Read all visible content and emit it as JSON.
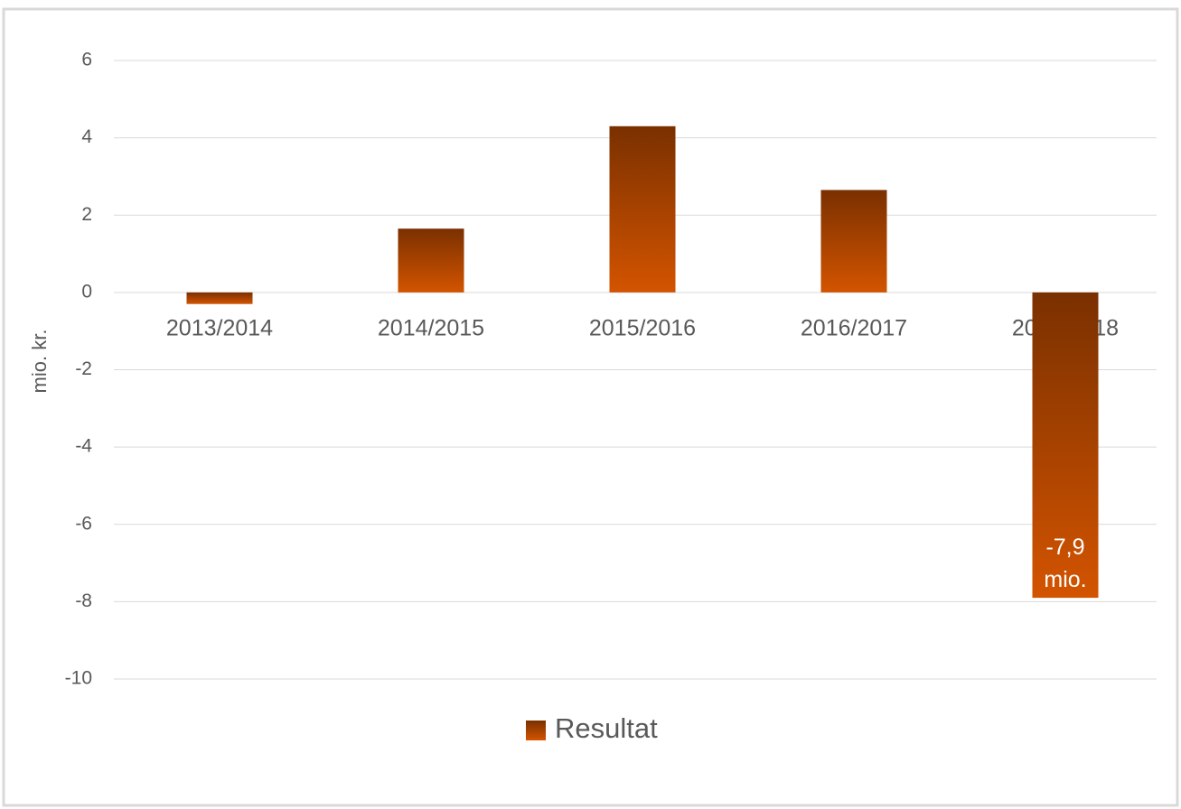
{
  "chart_data": {
    "type": "bar",
    "y_label": "mio. kr.",
    "categories": [
      "2013/2014",
      "2014/2015",
      "2015/2016",
      "2016/2017",
      "2017/2018"
    ],
    "series": [
      {
        "name": "Resultat",
        "color": "#d35400",
        "values": [
          -0.3,
          1.65,
          4.3,
          2.65,
          -7.9
        ],
        "value_labels": [
          null,
          null,
          null,
          null,
          "-7,9 mio."
        ]
      }
    ],
    "ylim": [
      -10,
      6
    ],
    "yticks": [
      -10,
      -8,
      -6,
      -4,
      -2,
      0,
      2,
      4,
      6
    ],
    "grid": true,
    "legend": "bottom"
  }
}
